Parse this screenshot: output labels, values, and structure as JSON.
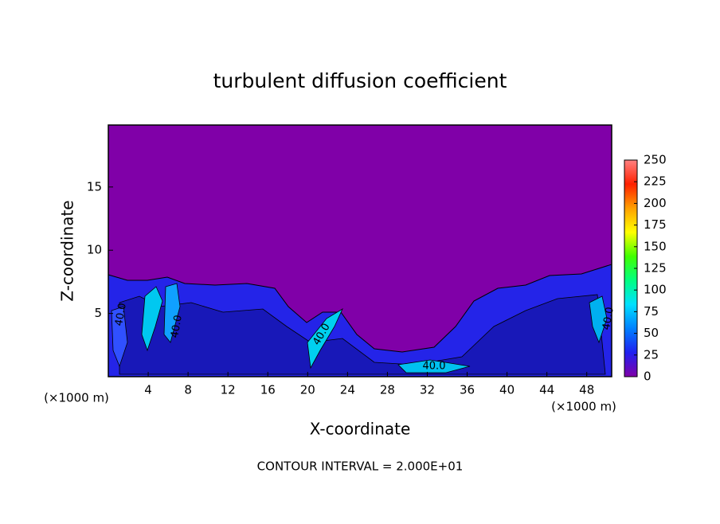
{
  "chart_data": {
    "type": "contour",
    "title": "turbulent diffusion coefficient",
    "x_label": "X-coordinate",
    "y_label": "Z-coordinate",
    "y_unit": "(×1000 m)",
    "x_unit": "(×1000 m)",
    "footer": "CONTOUR INTERVAL = 2.000E+01",
    "xlim": [
      0,
      50.5
    ],
    "xticks": [
      4,
      8,
      12,
      16,
      20,
      24,
      28,
      32,
      36,
      40,
      44,
      48
    ],
    "ylim": [
      0,
      19.9
    ],
    "yticks": [
      5,
      10,
      15
    ],
    "clim": [
      0,
      250
    ],
    "cticks": [
      0,
      25,
      50,
      75,
      100,
      125,
      150,
      175,
      200,
      225,
      250
    ],
    "colormap": [
      "#8000a8",
      "#2020f0",
      "#0080ff",
      "#00e0ff",
      "#00ff80",
      "#40ff00",
      "#ffff00",
      "#ffa000",
      "#ff2000",
      "#ff8080"
    ],
    "contour_labels": [
      "40.0",
      "40.0",
      "40.0",
      "40.0",
      "40.0"
    ]
  }
}
